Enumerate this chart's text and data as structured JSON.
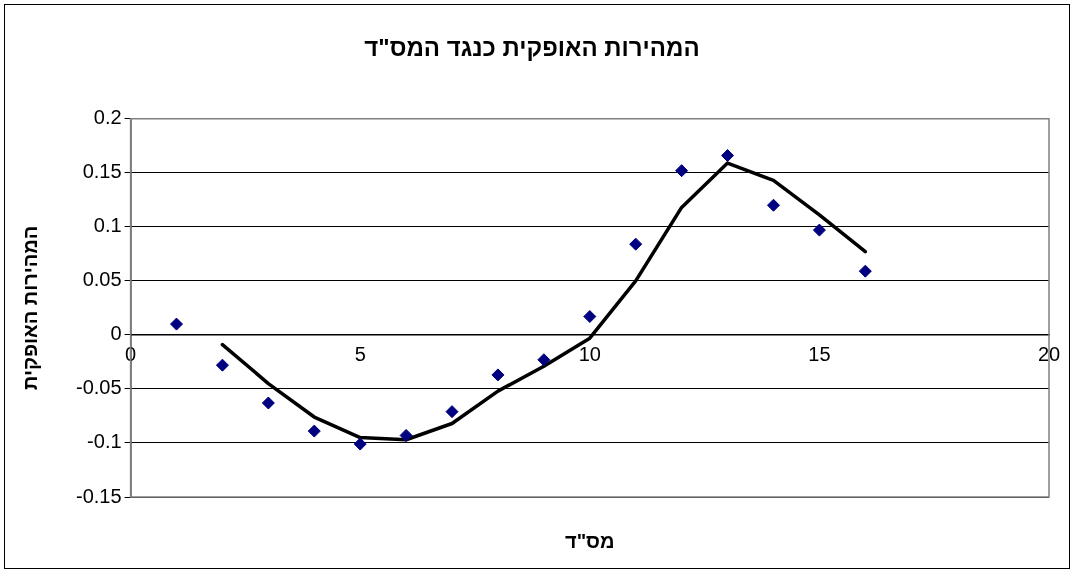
{
  "chart_data": {
    "type": "scatter",
    "title": "המהירות האופקית כנגד המס\"ד",
    "xlabel": "מס\"ד",
    "ylabel": "המהירות האופקית",
    "xlim": [
      0,
      20
    ],
    "xticks": [
      0,
      5,
      10,
      15,
      20
    ],
    "ylim": [
      -0.15,
      0.2
    ],
    "yticks": [
      -0.15,
      -0.1,
      -0.05,
      0,
      0.05,
      0.1,
      0.15,
      0.2
    ],
    "grid": "y",
    "legend": false,
    "series": [
      {
        "color": "#000080",
        "marker": "diamond",
        "x": [
          1,
          2,
          3,
          4,
          5,
          6,
          7,
          8,
          9,
          10,
          11,
          12,
          13,
          14,
          15,
          16
        ],
        "values": [
          0.01,
          -0.028,
          -0.063,
          -0.089,
          -0.101,
          -0.093,
          -0.071,
          -0.037,
          -0.023,
          0.017,
          0.084,
          0.152,
          0.166,
          0.12,
          0.097,
          0.059
        ]
      },
      {
        "type": "line",
        "color": "#000000",
        "marker": "none",
        "line_style": "solid",
        "x": [
          2,
          3,
          4,
          5,
          6,
          7,
          8,
          9,
          10,
          11,
          12,
          13,
          14,
          15,
          16
        ],
        "values": [
          -0.009,
          -0.045,
          -0.076,
          -0.095,
          -0.097,
          -0.082,
          -0.052,
          -0.029,
          -0.003,
          0.05,
          0.118,
          0.159,
          0.143,
          0.111,
          0.077
        ]
      }
    ]
  }
}
